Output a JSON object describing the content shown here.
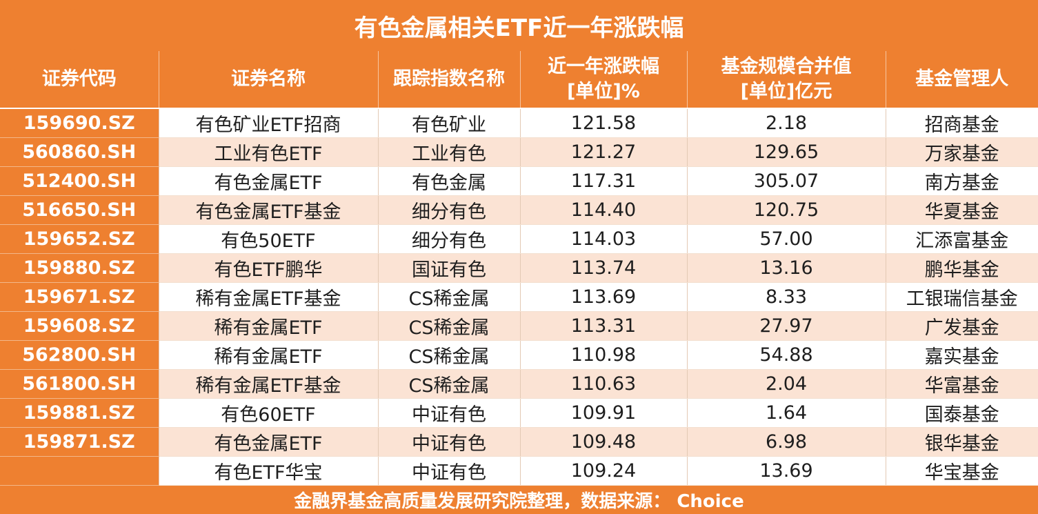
{
  "title": "有色金属相关ETF近一年涨跌幅",
  "headers": {
    "code": "证券代码",
    "name": "证券名称",
    "index": "跟踪指数名称",
    "change_l1": "近一年涨跌幅",
    "change_l2": "[单位]%",
    "size_l1": "基金规模合并值",
    "size_l2": "[单位]亿元",
    "manager": "基金管理人"
  },
  "rows": [
    {
      "code": "159690.SZ",
      "name": "有色矿业ETF招商",
      "index": "有色矿业",
      "change": "121.58",
      "size": "2.18",
      "manager": "招商基金"
    },
    {
      "code": "560860.SH",
      "name": "工业有色ETF",
      "index": "工业有色",
      "change": "121.27",
      "size": "129.65",
      "manager": "万家基金"
    },
    {
      "code": "512400.SH",
      "name": "有色金属ETF",
      "index": "有色金属",
      "change": "117.31",
      "size": "305.07",
      "manager": "南方基金"
    },
    {
      "code": "516650.SH",
      "name": "有色金属ETF基金",
      "index": "细分有色",
      "change": "114.40",
      "size": "120.75",
      "manager": "华夏基金"
    },
    {
      "code": "159652.SZ",
      "name": "有色50ETF",
      "index": "细分有色",
      "change": "114.03",
      "size": "57.00",
      "manager": "汇添富基金"
    },
    {
      "code": "159880.SZ",
      "name": "有色ETF鹏华",
      "index": "国证有色",
      "change": "113.74",
      "size": "13.16",
      "manager": "鹏华基金"
    },
    {
      "code": "159671.SZ",
      "name": "稀有金属ETF基金",
      "index": "CS稀金属",
      "change": "113.69",
      "size": "8.33",
      "manager": "工银瑞信基金"
    },
    {
      "code": "159608.SZ",
      "name": "稀有金属ETF",
      "index": "CS稀金属",
      "change": "113.31",
      "size": "27.97",
      "manager": "广发基金"
    },
    {
      "code": "562800.SH",
      "name": "稀有金属ETF",
      "index": "CS稀金属",
      "change": "110.98",
      "size": "54.88",
      "manager": "嘉实基金"
    },
    {
      "code": "561800.SH",
      "name": "稀有金属ETF基金",
      "index": "CS稀金属",
      "change": "110.63",
      "size": "2.04",
      "manager": "华富基金"
    },
    {
      "code": "159881.SZ",
      "name": "有色60ETF",
      "index": "中证有色",
      "change": "109.91",
      "size": "1.64",
      "manager": "国泰基金"
    },
    {
      "code": "159871.SZ",
      "name": "有色金属ETF",
      "index": "中证有色",
      "change": "109.48",
      "size": "6.98",
      "manager": "银华基金"
    },
    {
      "code": "",
      "name": "有色ETF华宝",
      "index": "中证有色",
      "change": "109.24",
      "size": "13.69",
      "manager": "华宝基金"
    }
  ],
  "footer": "金融界基金高质量发展研究院整理，数据来源：  Choice",
  "colors": {
    "accent": "#ee8030",
    "row_alt": "#fbe3d4",
    "row": "#ffffff"
  }
}
